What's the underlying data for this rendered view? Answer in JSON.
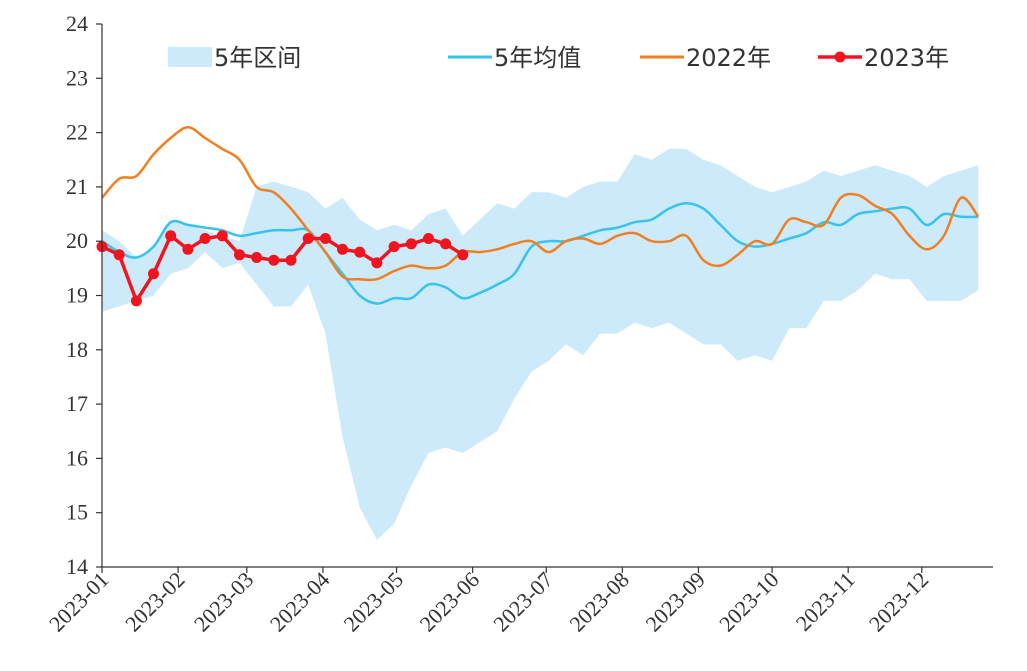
{
  "chart_data": {
    "type": "line",
    "xlabel": "",
    "ylabel": "",
    "ylim": [
      14,
      24
    ],
    "yticks": [
      "14",
      "15",
      "16",
      "17",
      "18",
      "19",
      "20",
      "21",
      "22",
      "23",
      "24"
    ],
    "x_ticks": [
      "2023-01",
      "2023-02",
      "2023-03",
      "2023-04",
      "2023-05",
      "2023-06",
      "2023-07",
      "2023-08",
      "2023-09",
      "2023-10",
      "2023-11",
      "2023-12"
    ],
    "grid": false,
    "legend_position": "top",
    "legend": [
      {
        "label": "5年区间",
        "kind": "band",
        "color": "#cdeafa"
      },
      {
        "label": "5年均值",
        "kind": "line",
        "color": "#38c3ec"
      },
      {
        "label": "2022年",
        "kind": "line",
        "color": "#f07f22"
      },
      {
        "label": "2023年",
        "kind": "line-marker",
        "color": "#f0141e"
      }
    ],
    "band_5yr_range": {
      "name": "5年区间",
      "color": "#cdeafa",
      "x": [
        "2023-01-01",
        "2023-01-08",
        "2023-01-15",
        "2023-01-22",
        "2023-01-29",
        "2023-02-05",
        "2023-02-12",
        "2023-02-19",
        "2023-02-26",
        "2023-03-05",
        "2023-03-12",
        "2023-03-19",
        "2023-03-26",
        "2023-04-02",
        "2023-04-09",
        "2023-04-16",
        "2023-04-23",
        "2023-04-30",
        "2023-05-07",
        "2023-05-14",
        "2023-05-21",
        "2023-05-28",
        "2023-06-04",
        "2023-06-11",
        "2023-06-18",
        "2023-06-25",
        "2023-07-02",
        "2023-07-09",
        "2023-07-16",
        "2023-07-23",
        "2023-07-30",
        "2023-08-06",
        "2023-08-13",
        "2023-08-20",
        "2023-08-27",
        "2023-09-03",
        "2023-09-10",
        "2023-09-17",
        "2023-09-24",
        "2023-10-01",
        "2023-10-08",
        "2023-10-15",
        "2023-10-22",
        "2023-10-29",
        "2023-11-05",
        "2023-11-12",
        "2023-11-19",
        "2023-11-26",
        "2023-12-03",
        "2023-12-10",
        "2023-12-17",
        "2023-12-24"
      ],
      "upper": [
        20.2,
        20.0,
        19.7,
        19.9,
        20.4,
        20.3,
        20.2,
        20.1,
        20.0,
        21.0,
        21.1,
        21.0,
        20.9,
        20.6,
        20.8,
        20.4,
        20.2,
        20.3,
        20.2,
        20.5,
        20.6,
        20.1,
        20.4,
        20.7,
        20.6,
        20.9,
        20.9,
        20.8,
        21.0,
        21.1,
        21.1,
        21.6,
        21.5,
        21.7,
        21.7,
        21.5,
        21.4,
        21.2,
        21.0,
        20.9,
        21.0,
        21.1,
        21.3,
        21.2,
        21.3,
        21.4,
        21.3,
        21.2,
        21.0,
        21.2,
        21.3,
        21.4
      ],
      "lower": [
        18.7,
        18.8,
        18.9,
        19.0,
        19.4,
        19.5,
        19.8,
        19.5,
        19.6,
        19.2,
        18.8,
        18.8,
        19.2,
        18.3,
        16.4,
        15.1,
        14.5,
        14.8,
        15.5,
        16.1,
        16.2,
        16.1,
        16.3,
        16.5,
        17.1,
        17.6,
        17.8,
        18.1,
        17.9,
        18.3,
        18.3,
        18.5,
        18.4,
        18.5,
        18.3,
        18.1,
        18.1,
        17.8,
        17.9,
        17.8,
        18.4,
        18.4,
        18.9,
        18.9,
        19.1,
        19.4,
        19.3,
        19.3,
        18.9,
        18.9,
        18.9,
        19.1
      ]
    },
    "series": [
      {
        "name": "5年均值",
        "color": "#38c3ec",
        "style": "line",
        "x": [
          "2023-01-01",
          "2023-01-08",
          "2023-01-15",
          "2023-01-22",
          "2023-01-29",
          "2023-02-05",
          "2023-02-12",
          "2023-02-19",
          "2023-02-26",
          "2023-03-05",
          "2023-03-12",
          "2023-03-19",
          "2023-03-26",
          "2023-04-02",
          "2023-04-09",
          "2023-04-16",
          "2023-04-23",
          "2023-04-30",
          "2023-05-07",
          "2023-05-14",
          "2023-05-21",
          "2023-05-28",
          "2023-06-04",
          "2023-06-11",
          "2023-06-18",
          "2023-06-25",
          "2023-07-02",
          "2023-07-09",
          "2023-07-16",
          "2023-07-23",
          "2023-07-30",
          "2023-08-06",
          "2023-08-13",
          "2023-08-20",
          "2023-08-27",
          "2023-09-03",
          "2023-09-10",
          "2023-09-17",
          "2023-09-24",
          "2023-10-01",
          "2023-10-08",
          "2023-10-15",
          "2023-10-22",
          "2023-10-29",
          "2023-11-05",
          "2023-11-12",
          "2023-11-19",
          "2023-11-26",
          "2023-12-03",
          "2023-12-10",
          "2023-12-17",
          "2023-12-24"
        ],
        "values": [
          20.0,
          19.8,
          19.7,
          19.9,
          20.35,
          20.3,
          20.25,
          20.2,
          20.1,
          20.15,
          20.2,
          20.2,
          20.2,
          19.8,
          19.4,
          19.0,
          18.85,
          18.95,
          18.95,
          19.2,
          19.15,
          18.95,
          19.05,
          19.2,
          19.4,
          19.9,
          20.0,
          20.0,
          20.1,
          20.2,
          20.25,
          20.35,
          20.4,
          20.6,
          20.7,
          20.6,
          20.3,
          20.0,
          19.9,
          19.95,
          20.05,
          20.15,
          20.35,
          20.3,
          20.5,
          20.55,
          20.6,
          20.6,
          20.3,
          20.5,
          20.45,
          20.45
        ]
      },
      {
        "name": "2022年",
        "color": "#f07f22",
        "style": "line",
        "x": [
          "2023-01-01",
          "2023-01-08",
          "2023-01-15",
          "2023-01-22",
          "2023-01-29",
          "2023-02-05",
          "2023-02-12",
          "2023-02-19",
          "2023-02-26",
          "2023-03-05",
          "2023-03-12",
          "2023-03-19",
          "2023-03-26",
          "2023-04-02",
          "2023-04-09",
          "2023-04-16",
          "2023-04-23",
          "2023-04-30",
          "2023-05-07",
          "2023-05-14",
          "2023-05-21",
          "2023-05-28",
          "2023-06-04",
          "2023-06-11",
          "2023-06-18",
          "2023-06-25",
          "2023-07-02",
          "2023-07-09",
          "2023-07-16",
          "2023-07-23",
          "2023-07-30",
          "2023-08-06",
          "2023-08-13",
          "2023-08-20",
          "2023-08-27",
          "2023-09-03",
          "2023-09-10",
          "2023-09-17",
          "2023-09-24",
          "2023-10-01",
          "2023-10-08",
          "2023-10-15",
          "2023-10-22",
          "2023-10-29",
          "2023-11-05",
          "2023-11-12",
          "2023-11-19",
          "2023-11-26",
          "2023-12-03",
          "2023-12-10",
          "2023-12-17",
          "2023-12-24"
        ],
        "values": [
          20.8,
          21.15,
          21.2,
          21.6,
          21.9,
          22.1,
          21.9,
          21.7,
          21.5,
          21.0,
          20.9,
          20.6,
          20.2,
          19.8,
          19.35,
          19.3,
          19.3,
          19.45,
          19.55,
          19.5,
          19.55,
          19.8,
          19.8,
          19.85,
          19.95,
          20.0,
          19.8,
          20.0,
          20.05,
          19.95,
          20.1,
          20.15,
          20.0,
          20.0,
          20.1,
          19.65,
          19.55,
          19.75,
          20.0,
          19.95,
          20.4,
          20.35,
          20.3,
          20.8,
          20.85,
          20.65,
          20.5,
          20.1,
          19.85,
          20.1,
          20.8,
          20.45
        ]
      },
      {
        "name": "2023年",
        "color": "#f0141e",
        "style": "line-marker",
        "x": [
          "2023-01-01",
          "2023-01-08",
          "2023-01-15",
          "2023-01-22",
          "2023-01-29",
          "2023-02-05",
          "2023-02-12",
          "2023-02-19",
          "2023-02-26",
          "2023-03-05",
          "2023-03-12",
          "2023-03-19",
          "2023-03-26",
          "2023-04-02",
          "2023-04-09",
          "2023-04-16",
          "2023-04-23",
          "2023-04-30",
          "2023-05-07",
          "2023-05-14",
          "2023-05-21",
          "2023-05-28"
        ],
        "values": [
          19.9,
          19.75,
          18.9,
          19.4,
          20.1,
          19.85,
          20.05,
          20.1,
          19.75,
          19.7,
          19.65,
          19.65,
          20.05,
          20.05,
          19.85,
          19.8,
          19.6,
          19.9,
          19.95,
          20.05,
          19.95,
          19.75
        ]
      }
    ]
  }
}
